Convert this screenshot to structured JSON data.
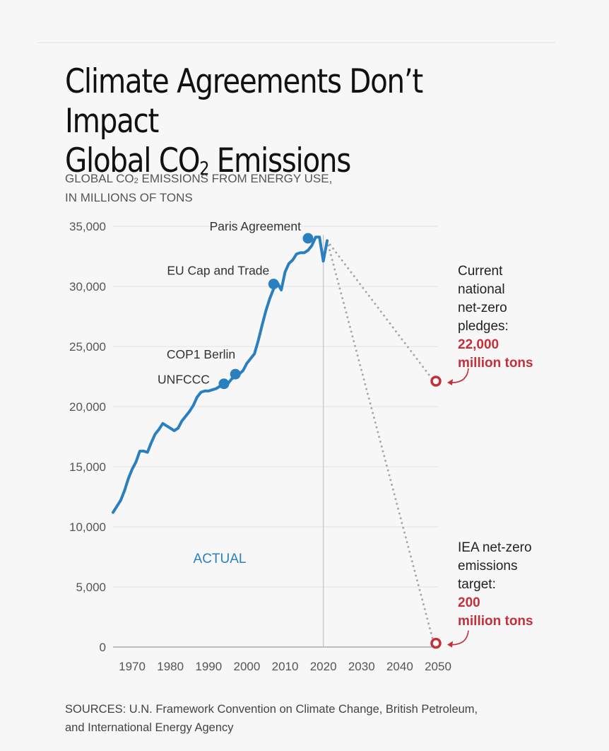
{
  "header": {
    "title_line1": "Climate Agreements Don’t Impact",
    "title_line2_pre": "Global CO",
    "title_line2_sub": "2",
    "title_line2_post": " Emissions",
    "subtitle_pre": "GLOBAL CO",
    "subtitle_sub": "2",
    "subtitle_post": " EMISSIONS FROM ENERGY USE,",
    "subtitle_line2": "IN MILLIONS OF TONS"
  },
  "footer": {
    "sources_line1": "SOURCES: U.N. Framework Convention on Climate Change, British Petroleum,",
    "sources_line2": "and International Energy Agency"
  },
  "chart_data": {
    "type": "line",
    "ylim": [
      0,
      35000
    ],
    "xlim": [
      1965,
      2050
    ],
    "y_ticks": [
      0,
      5000,
      10000,
      15000,
      20000,
      25000,
      30000,
      35000
    ],
    "y_tick_labels": [
      "0",
      "5,000",
      "10,000",
      "15,000",
      "20,000",
      "25,000",
      "30,000",
      "35,000"
    ],
    "x_ticks": [
      1970,
      1980,
      1990,
      2000,
      2010,
      2020,
      2030,
      2040,
      2050
    ],
    "x_tick_labels": [
      "1970",
      "1980",
      "1990",
      "2000",
      "2010",
      "2020",
      "2030",
      "2040",
      "2050"
    ],
    "grid": true,
    "divider_year": 2020,
    "series_label": "ACTUAL",
    "series_color": "#2a7fbe",
    "projection_color": "#a8a8a8",
    "accent_color": "#c4303a",
    "series": [
      {
        "x": [
          1965,
          1966,
          1967,
          1968,
          1969,
          1970,
          1971,
          1972,
          1973,
          1974,
          1975,
          1976,
          1977,
          1978,
          1979,
          1980,
          1981,
          1982,
          1983,
          1984,
          1985,
          1986,
          1987,
          1988,
          1989,
          1990,
          1991,
          1992,
          1993,
          1994,
          1995,
          1996,
          1997,
          1998,
          1999,
          2000,
          2001,
          2002,
          2003,
          2004,
          2005,
          2006,
          2007,
          2008,
          2009,
          2010,
          2011,
          2012,
          2013,
          2014,
          2015,
          2016,
          2017,
          2018,
          2019,
          2020,
          2021
        ],
        "values": [
          11200,
          11700,
          12200,
          13000,
          14000,
          14800,
          15400,
          16300,
          16300,
          16200,
          17000,
          17700,
          18100,
          18600,
          18400,
          18200,
          18000,
          18200,
          18800,
          19200,
          19600,
          20100,
          20800,
          21200,
          21300,
          21300,
          21400,
          21500,
          21700,
          21800,
          21900,
          22300,
          22500,
          22700,
          23000,
          23600,
          24000,
          24400,
          25500,
          26800,
          28000,
          29000,
          29800,
          30300,
          29700,
          31200,
          31900,
          32200,
          32700,
          32800,
          32800,
          33000,
          33400,
          34100,
          34100,
          32100,
          33800
        ]
      }
    ],
    "milestones": [
      {
        "label": "UNFCCC",
        "x": 1994,
        "y": 21900
      },
      {
        "label": "COP1 Berlin",
        "x": 1997,
        "y": 22700
      },
      {
        "label": "EU Cap and Trade",
        "x": 2007,
        "y": 30200
      },
      {
        "label": "Paris Agreement",
        "x": 2016,
        "y": 34000
      }
    ],
    "projections": [
      {
        "x0": 2021,
        "y0": 33800,
        "x1": 2050,
        "y1": 22000,
        "note": [
          "Current",
          "national",
          "net-zero",
          "pledges:"
        ],
        "value": [
          "22,000",
          "million tons"
        ]
      },
      {
        "x0": 2021,
        "y0": 33800,
        "x1": 2050,
        "y1": 200,
        "note": [
          "IEA net-zero",
          "emissions",
          "target:"
        ],
        "value": [
          "200",
          "million tons"
        ]
      }
    ]
  }
}
